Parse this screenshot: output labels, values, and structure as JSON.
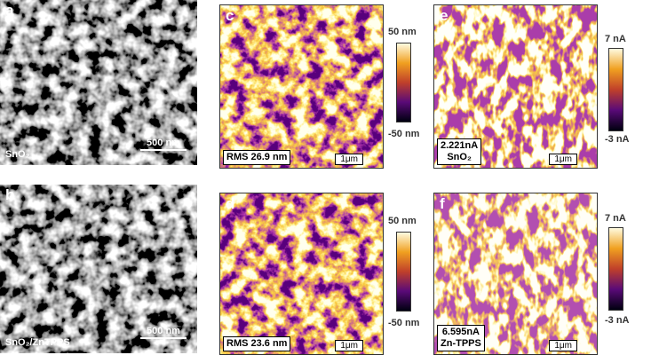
{
  "panels": [
    {
      "label": "a",
      "caption": "SnO₂",
      "scale_bar": "500 nm"
    },
    {
      "label": "b",
      "caption": "SnO₂/ZnTPPS",
      "scale_bar": "500 nm"
    },
    {
      "label": "c",
      "caption": "RMS 26.9 nm",
      "scale_bar": "1μm",
      "colorbar": {
        "max": "50 nm",
        "min": "-50 nm"
      }
    },
    {
      "label": "d",
      "caption": "RMS 23.6 nm",
      "scale_bar": "1μm",
      "colorbar": {
        "max": "50 nm",
        "min": "-50 nm"
      }
    },
    {
      "label": "e",
      "caption_lines": [
        "2.221nA",
        "SnO₂"
      ],
      "scale_bar": "1μm",
      "colorbar": {
        "max": "7 nA",
        "min": "-3 nA"
      }
    },
    {
      "label": "f",
      "caption_lines": [
        "6.595nA",
        "Zn-TPPS"
      ],
      "scale_bar": "1μm",
      "colorbar": {
        "max": "7 nA",
        "min": "-3 nA"
      }
    }
  ]
}
